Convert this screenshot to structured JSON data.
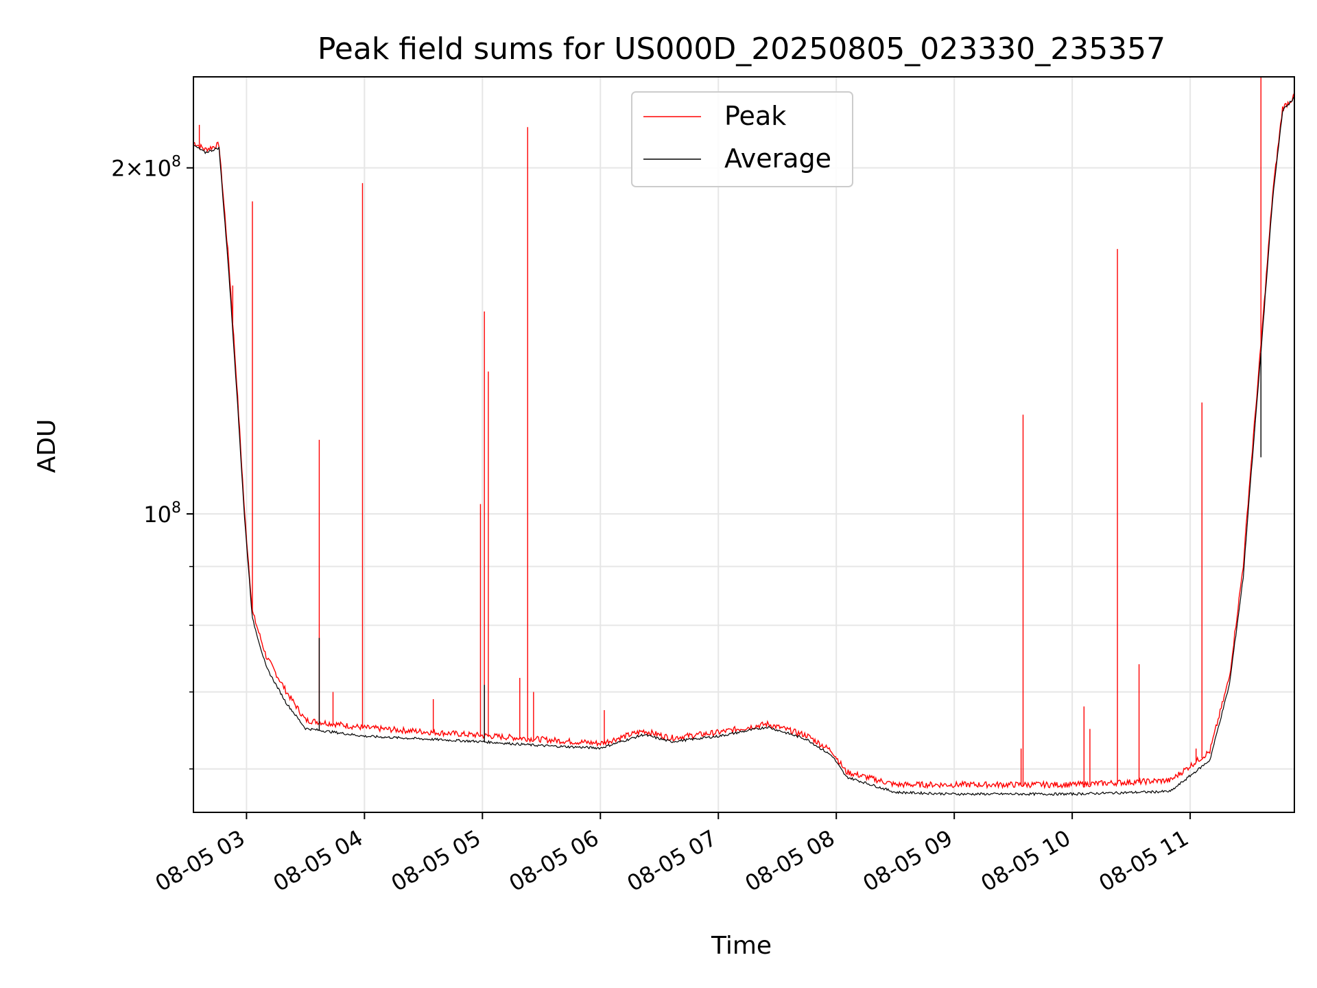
{
  "chart_data": {
    "type": "line",
    "title": "Peak field sums for US000D_20250805_023330_235357",
    "xlabel": "Time",
    "ylabel": "ADU",
    "yscale": "log",
    "ylim": [
      55000000,
      240000000
    ],
    "xlim": [
      "2025-08-05 02:33",
      "2025-08-05 11:53"
    ],
    "x_tick_labels": [
      "08-05 03",
      "08-05 04",
      "08-05 05",
      "08-05 06",
      "08-05 07",
      "08-05 08",
      "08-05 09",
      "08-05 10",
      "08-05 11"
    ],
    "y_tick_labels": [
      {
        "value": 100000000,
        "label": "10^8"
      },
      {
        "value": 200000000,
        "label": "2×10^8"
      }
    ],
    "grid": true,
    "legend_position": "top-center",
    "series": [
      {
        "name": "Peak",
        "color": "#ff0000",
        "baseline": [
          [
            "2025-08-05 02:33",
            210000000
          ],
          [
            "2025-08-05 02:39",
            207000000
          ],
          [
            "2025-08-05 02:46",
            209000000
          ],
          [
            "2025-08-05 02:51",
            165000000
          ],
          [
            "2025-08-05 02:55",
            130000000
          ],
          [
            "2025-08-05 02:59",
            100000000
          ],
          [
            "2025-08-05 03:03",
            82000000
          ],
          [
            "2025-08-05 03:10",
            75000000
          ],
          [
            "2025-08-05 03:20",
            70000000
          ],
          [
            "2025-08-05 03:30",
            66000000
          ],
          [
            "2025-08-05 04:00",
            65000000
          ],
          [
            "2025-08-05 05:00",
            64000000
          ],
          [
            "2025-08-05 05:30",
            63500000
          ],
          [
            "2025-08-05 06:00",
            63000000
          ],
          [
            "2025-08-05 06:22",
            64600000
          ],
          [
            "2025-08-05 06:36",
            63700000
          ],
          [
            "2025-08-05 07:00",
            64400000
          ],
          [
            "2025-08-05 07:25",
            65500000
          ],
          [
            "2025-08-05 07:45",
            64000000
          ],
          [
            "2025-08-05 07:58",
            62000000
          ],
          [
            "2025-08-05 08:05",
            59500000
          ],
          [
            "2025-08-05 08:30",
            58000000
          ],
          [
            "2025-08-05 09:00",
            58000000
          ],
          [
            "2025-08-05 10:00",
            58000000
          ],
          [
            "2025-08-05 10:50",
            58500000
          ],
          [
            "2025-08-05 11:10",
            62000000
          ],
          [
            "2025-08-05 11:20",
            72000000
          ],
          [
            "2025-08-05 11:27",
            90000000
          ],
          [
            "2025-08-05 11:30",
            105000000
          ],
          [
            "2025-08-05 11:36",
            140000000
          ],
          [
            "2025-08-05 11:42",
            190000000
          ],
          [
            "2025-08-05 11:47",
            225000000
          ],
          [
            "2025-08-05 11:53",
            230000000
          ]
        ],
        "spikes": [
          [
            "2025-08-05 02:36",
            218000000
          ],
          [
            "2025-08-05 02:53",
            158000000
          ],
          [
            "2025-08-05 03:03",
            187000000
          ],
          [
            "2025-08-05 03:37",
            116000000
          ],
          [
            "2025-08-05 03:44",
            70000000
          ],
          [
            "2025-08-05 03:59",
            194000000
          ],
          [
            "2025-08-05 04:35",
            69000000
          ],
          [
            "2025-08-05 04:59",
            102000000
          ],
          [
            "2025-08-05 05:01",
            150000000
          ],
          [
            "2025-08-05 05:03",
            133000000
          ],
          [
            "2025-08-05 05:19",
            72000000
          ],
          [
            "2025-08-05 05:23",
            217000000
          ],
          [
            "2025-08-05 05:26",
            70000000
          ],
          [
            "2025-08-05 06:02",
            67500000
          ],
          [
            "2025-08-05 09:34",
            62500000
          ],
          [
            "2025-08-05 09:35",
            122000000
          ],
          [
            "2025-08-05 10:06",
            68000000
          ],
          [
            "2025-08-05 10:09",
            65000000
          ],
          [
            "2025-08-05 10:23",
            170000000
          ],
          [
            "2025-08-05 10:34",
            74000000
          ],
          [
            "2025-08-05 11:03",
            62500000
          ],
          [
            "2025-08-05 11:06",
            125000000
          ],
          [
            "2025-08-05 11:36",
            240000000
          ]
        ]
      },
      {
        "name": "Average",
        "color": "#000000",
        "baseline": [
          [
            "2025-08-05 02:33",
            209000000
          ],
          [
            "2025-08-05 02:39",
            206000000
          ],
          [
            "2025-08-05 02:46",
            208000000
          ],
          [
            "2025-08-05 02:51",
            162000000
          ],
          [
            "2025-08-05 02:55",
            128000000
          ],
          [
            "2025-08-05 02:59",
            99000000
          ],
          [
            "2025-08-05 03:03",
            81000000
          ],
          [
            "2025-08-05 03:10",
            73500000
          ],
          [
            "2025-08-05 03:20",
            68500000
          ],
          [
            "2025-08-05 03:30",
            65000000
          ],
          [
            "2025-08-05 04:00",
            64000000
          ],
          [
            "2025-08-05 05:00",
            63300000
          ],
          [
            "2025-08-05 05:30",
            62800000
          ],
          [
            "2025-08-05 06:00",
            62500000
          ],
          [
            "2025-08-05 06:22",
            64200000
          ],
          [
            "2025-08-05 06:36",
            63300000
          ],
          [
            "2025-08-05 07:00",
            64000000
          ],
          [
            "2025-08-05 07:25",
            65200000
          ],
          [
            "2025-08-05 07:45",
            63600000
          ],
          [
            "2025-08-05 07:58",
            61500000
          ],
          [
            "2025-08-05 08:05",
            59000000
          ],
          [
            "2025-08-05 08:30",
            57200000
          ],
          [
            "2025-08-05 09:00",
            57000000
          ],
          [
            "2025-08-05 10:00",
            57000000
          ],
          [
            "2025-08-05 10:50",
            57300000
          ],
          [
            "2025-08-05 11:10",
            61000000
          ],
          [
            "2025-08-05 11:20",
            71000000
          ],
          [
            "2025-08-05 11:27",
            88000000
          ],
          [
            "2025-08-05 11:30",
            103000000
          ],
          [
            "2025-08-05 11:36",
            138000000
          ],
          [
            "2025-08-05 11:42",
            188000000
          ],
          [
            "2025-08-05 11:47",
            224000000
          ],
          [
            "2025-08-05 11:53",
            230000000
          ]
        ],
        "spikes": [
          [
            "2025-08-05 03:37",
            78000000
          ],
          [
            "2025-08-05 05:01",
            71000000
          ],
          [
            "2025-08-05 11:36",
            112000000
          ]
        ]
      }
    ]
  }
}
